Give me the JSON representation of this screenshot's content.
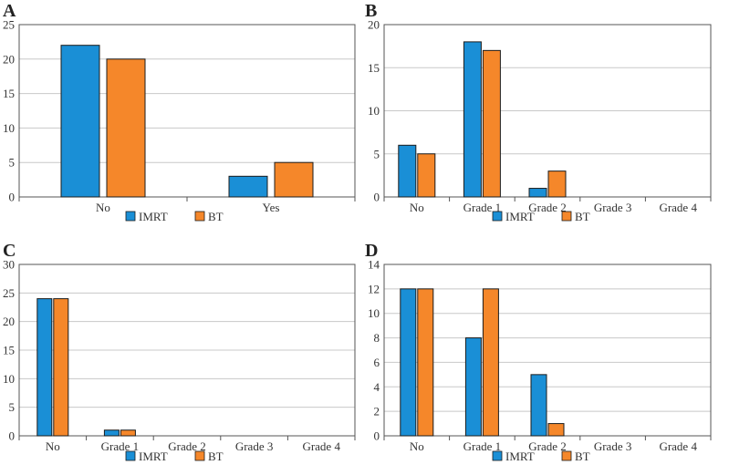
{
  "colors": {
    "imrt": "#1a8fd6",
    "bt": "#f5872a",
    "grid": "#c8c8c8",
    "frame": "#555555",
    "barEdge": "#1c1c1c"
  },
  "chart_data": [
    {
      "panel": "A",
      "type": "bar",
      "categories": [
        "No",
        "Yes"
      ],
      "series": [
        {
          "name": "IMRT",
          "values": [
            22,
            3
          ]
        },
        {
          "name": "BT",
          "values": [
            20,
            5
          ]
        }
      ],
      "ylim": [
        0,
        25
      ],
      "yticks": [
        0,
        5,
        10,
        15,
        20,
        25
      ],
      "legend": "bottom-center",
      "grid": true
    },
    {
      "panel": "B",
      "type": "bar",
      "categories": [
        "No",
        "Grade 1",
        "Grade 2",
        "Grade 3",
        "Grade 4"
      ],
      "series": [
        {
          "name": "IMRT",
          "values": [
            6,
            18,
            1,
            0,
            0
          ]
        },
        {
          "name": "BT",
          "values": [
            5,
            17,
            3,
            0,
            0
          ]
        }
      ],
      "ylim": [
        0,
        20
      ],
      "yticks": [
        0,
        5,
        10,
        15,
        20
      ],
      "legend": "bottom-center",
      "grid": true
    },
    {
      "panel": "C",
      "type": "bar",
      "categories": [
        "No",
        "Grade 1",
        "Grade 2",
        "Grade 3",
        "Grade 4"
      ],
      "series": [
        {
          "name": "IMRT",
          "values": [
            24,
            1,
            0,
            0,
            0
          ]
        },
        {
          "name": "BT",
          "values": [
            24,
            1,
            0,
            0,
            0
          ]
        }
      ],
      "ylim": [
        0,
        30
      ],
      "yticks": [
        0,
        5,
        10,
        15,
        20,
        25,
        30
      ],
      "legend": "bottom-center",
      "grid": true
    },
    {
      "panel": "D",
      "type": "bar",
      "categories": [
        "No",
        "Grade 1",
        "Grade 2",
        "Grade 3",
        "Grade 4"
      ],
      "series": [
        {
          "name": "IMRT",
          "values": [
            12,
            8,
            5,
            0,
            0
          ]
        },
        {
          "name": "BT",
          "values": [
            12,
            12,
            1,
            0,
            0
          ]
        }
      ],
      "ylim": [
        0,
        14
      ],
      "yticks": [
        0,
        2,
        4,
        6,
        8,
        10,
        12,
        14
      ],
      "legend": "bottom-center",
      "grid": true
    }
  ]
}
